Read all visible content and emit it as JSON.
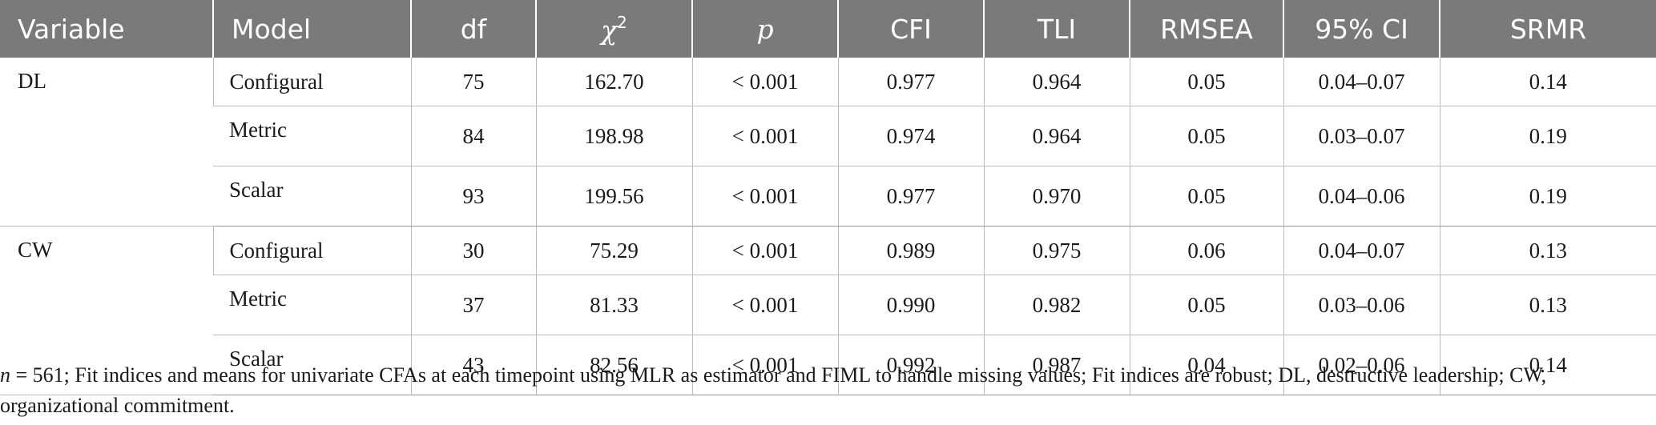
{
  "table": {
    "headers": [
      "Variable",
      "Model",
      "df",
      "χ",
      "p",
      "CFI",
      "TLI",
      "RMSEA",
      "95% CI",
      "SRMR"
    ],
    "chi_superscript": "2",
    "groups": [
      {
        "variable": "DL",
        "rows": [
          {
            "model": "Configural",
            "df": "75",
            "chi2": "162.70",
            "p": "< 0.001",
            "cfi": "0.977",
            "tli": "0.964",
            "rmsea": "0.05",
            "ci": "0.04–0.07",
            "srmr": "0.14"
          },
          {
            "model": "Metric",
            "df": "84",
            "chi2": "198.98",
            "p": "< 0.001",
            "cfi": "0.974",
            "tli": "0.964",
            "rmsea": "0.05",
            "ci": "0.03–0.07",
            "srmr": "0.19"
          },
          {
            "model": "Scalar",
            "df": "93",
            "chi2": "199.56",
            "p": "< 0.001",
            "cfi": "0.977",
            "tli": "0.970",
            "rmsea": "0.05",
            "ci": "0.04–0.06",
            "srmr": "0.19"
          }
        ]
      },
      {
        "variable": "CW",
        "rows": [
          {
            "model": "Configural",
            "df": "30",
            "chi2": "75.29",
            "p": "< 0.001",
            "cfi": "0.989",
            "tli": "0.975",
            "rmsea": "0.06",
            "ci": "0.04–0.07",
            "srmr": "0.13"
          },
          {
            "model": "Metric",
            "df": "37",
            "chi2": "81.33",
            "p": "< 0.001",
            "cfi": "0.990",
            "tli": "0.982",
            "rmsea": "0.05",
            "ci": "0.03–0.06",
            "srmr": "0.13"
          },
          {
            "model": "Scalar",
            "df": "43",
            "chi2": "82.56",
            "p": "< 0.001",
            "cfi": "0.992",
            "tli": "0.987",
            "rmsea": "0.04",
            "ci": "0.02–0.06",
            "srmr": "0.14"
          }
        ]
      }
    ]
  },
  "footnote": {
    "n_symbol": "n",
    "text": " = 561; Fit indices and means for univariate CFAs at each timepoint using MLR as estimator and FIML to handle missing values; Fit indices are robust; DL, destructive leadership; CW, organizational commitment."
  },
  "colors": {
    "header_bg": "#7a7a7a",
    "header_text": "#ffffff",
    "grid": "#bcbcbc"
  }
}
